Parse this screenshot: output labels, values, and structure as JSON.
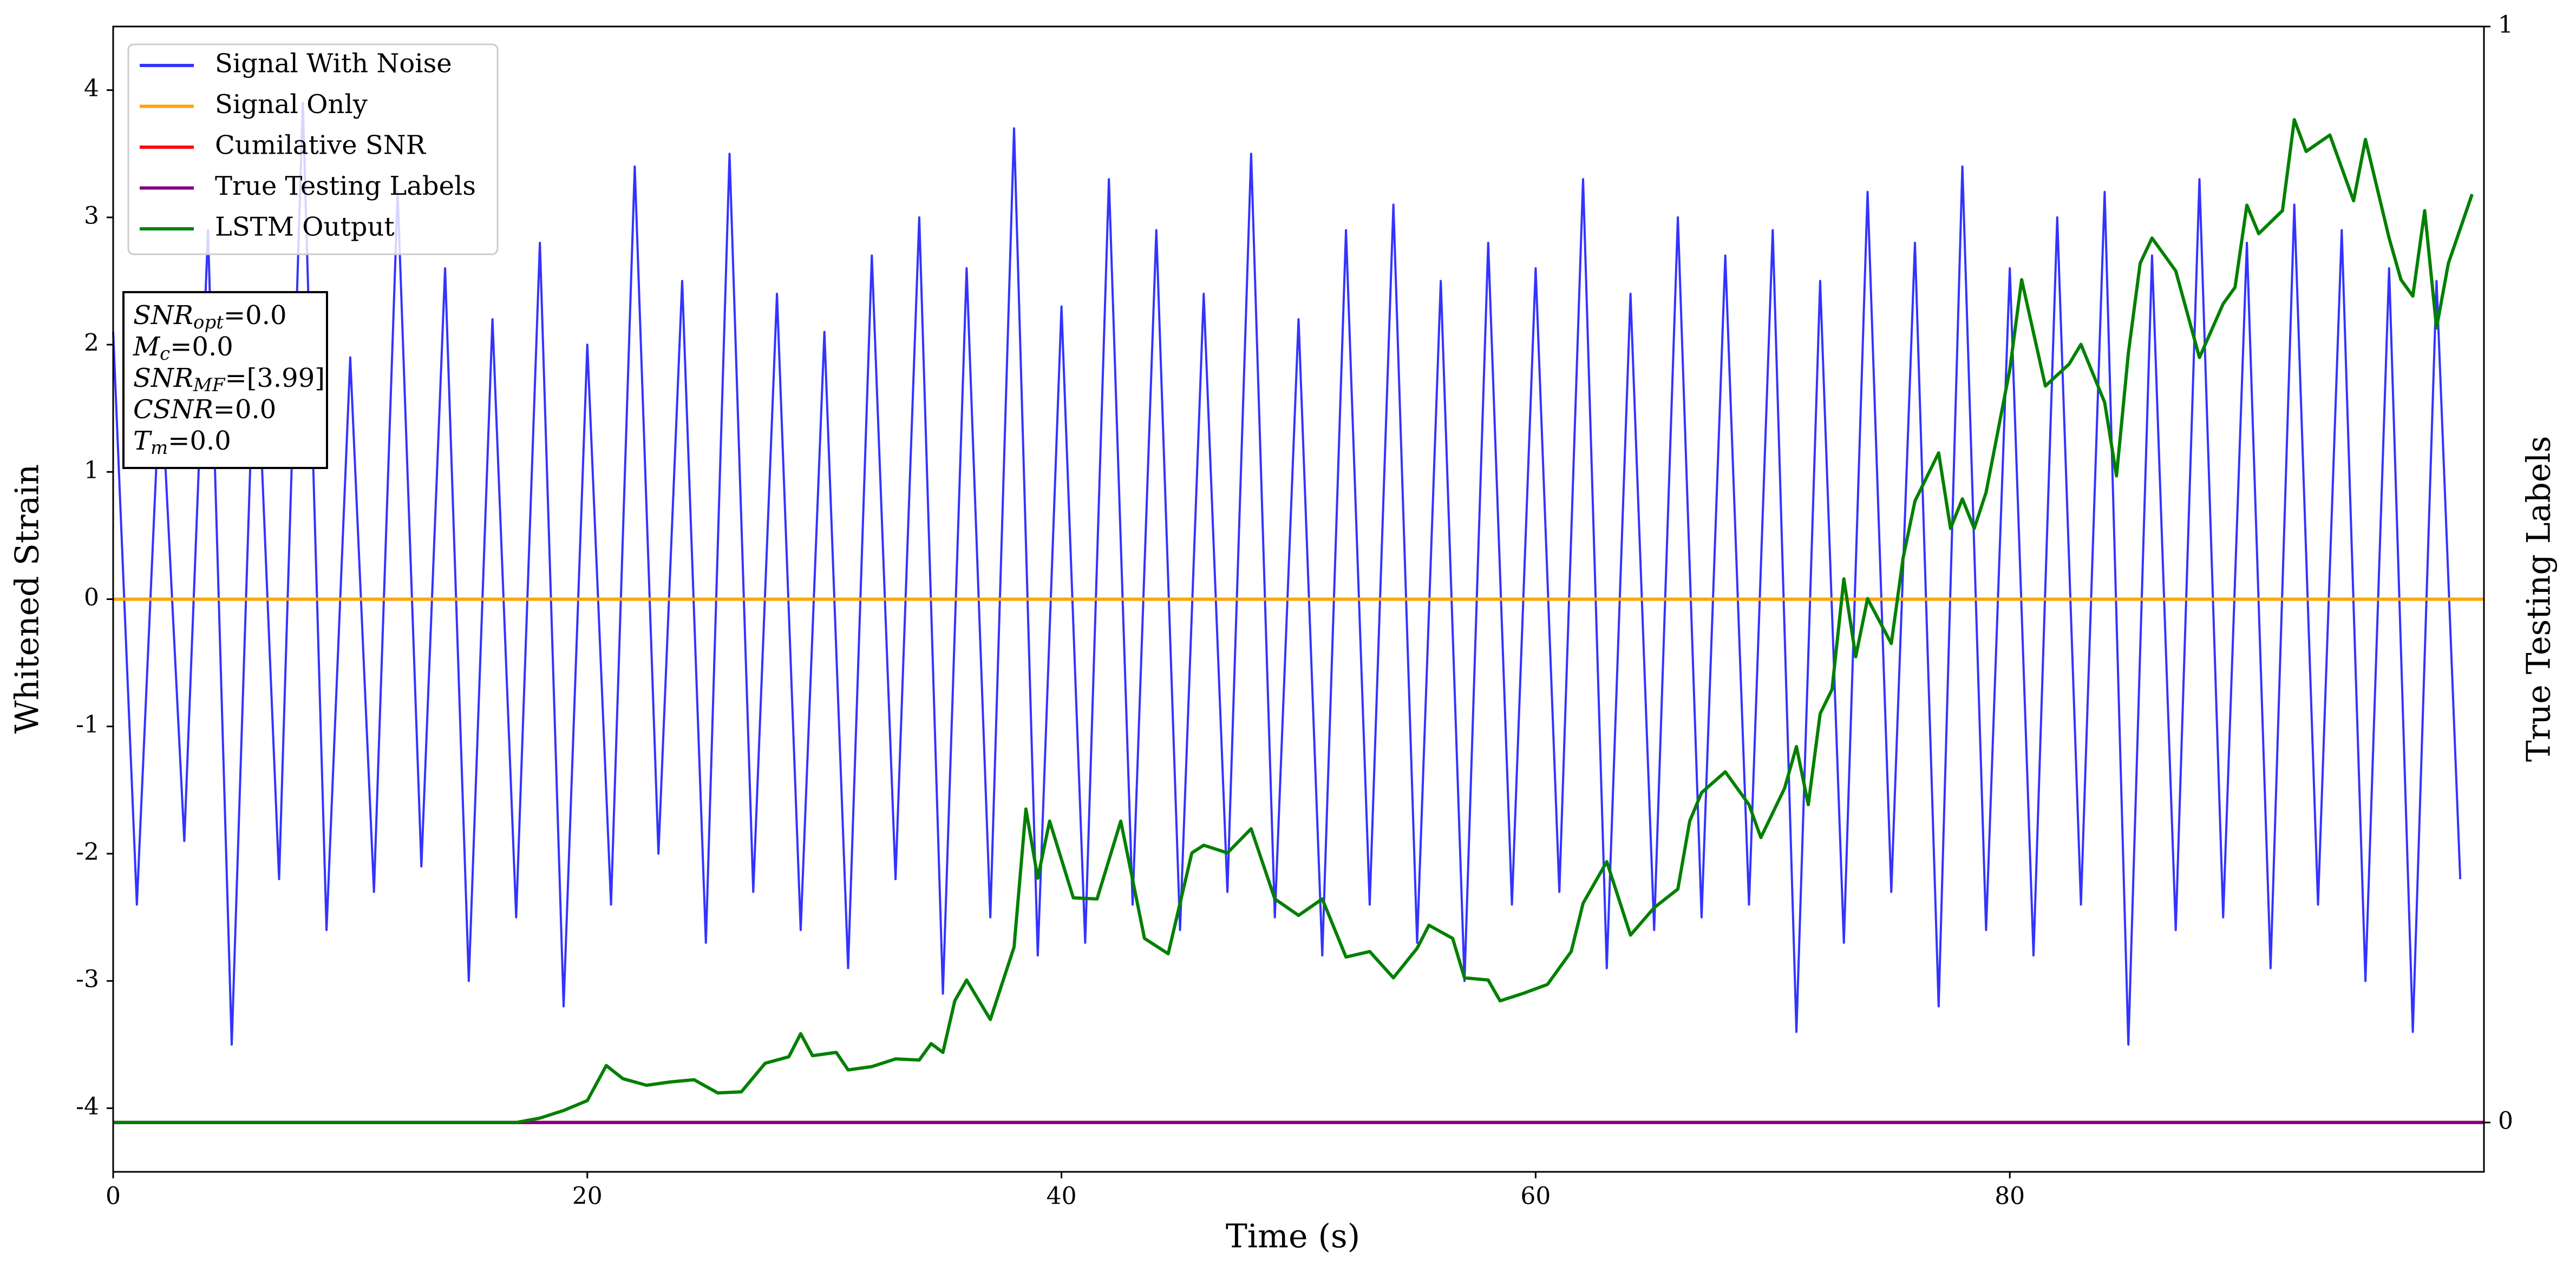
{
  "chart_data": {
    "type": "line",
    "x_label": "Time (s)",
    "y_label": "Whitened Strain",
    "y2_label": "True Testing Labels",
    "xlim": [
      0,
      100
    ],
    "xticks": [
      0,
      20,
      40,
      60,
      80
    ],
    "ylim": [
      -4.5,
      4.5
    ],
    "yticks": [
      -4,
      -3,
      -2,
      -1,
      0,
      1,
      2,
      3,
      4
    ],
    "y2lim": [
      -0.045,
      1
    ],
    "y2ticks": [
      0,
      1
    ],
    "grid": false,
    "legend": "upper left",
    "series": [
      {
        "name": "Signal With Noise",
        "color": "#3333ff",
        "x": [
          0,
          1,
          2,
          3,
          4,
          5,
          6,
          7,
          8,
          9,
          10,
          11,
          12,
          13,
          14,
          15,
          16,
          17,
          18,
          19,
          20,
          21,
          22,
          23,
          24,
          25,
          26,
          27,
          28,
          29,
          30,
          31,
          32,
          33,
          34,
          35,
          36,
          37,
          38,
          39,
          40,
          41,
          42,
          43,
          44,
          45,
          46,
          47,
          48,
          49,
          50,
          51,
          52,
          53,
          54,
          55,
          56,
          57,
          58,
          59,
          60,
          61,
          62,
          63,
          64,
          65,
          66,
          67,
          68,
          69,
          70,
          71,
          72,
          73,
          74,
          75,
          76,
          77,
          78,
          79,
          80,
          81,
          82,
          83,
          84,
          85,
          86,
          87,
          88,
          89,
          90,
          91,
          92,
          93,
          94,
          95,
          96,
          97,
          98,
          99
        ],
        "values": [
          2.1,
          -2.4,
          1.8,
          -1.9,
          2.9,
          -3.5,
          2.3,
          -2.2,
          3.9,
          -2.6,
          1.9,
          -2.3,
          3.2,
          -2.1,
          2.6,
          -3.0,
          2.2,
          -2.5,
          2.8,
          -3.2,
          2.0,
          -2.4,
          3.4,
          -2.0,
          2.5,
          -2.7,
          3.5,
          -2.3,
          2.4,
          -2.6,
          2.1,
          -2.9,
          2.7,
          -2.2,
          3.0,
          -3.1,
          2.6,
          -2.5,
          3.7,
          -2.8,
          2.3,
          -2.7,
          3.3,
          -2.4,
          2.9,
          -2.6,
          2.4,
          -2.3,
          3.5,
          -2.5,
          2.2,
          -2.8,
          2.9,
          -2.4,
          3.1,
          -2.7,
          2.5,
          -3.0,
          2.8,
          -2.4,
          2.6,
          -2.3,
          3.3,
          -2.9,
          2.4,
          -2.6,
          3.0,
          -2.5,
          2.7,
          -2.4,
          2.9,
          -3.4,
          2.5,
          -2.7,
          3.2,
          -2.3,
          2.8,
          -3.2,
          3.4,
          -2.6,
          2.6,
          -2.8,
          3.0,
          -2.4,
          3.2,
          -3.5,
          2.7,
          -2.6,
          3.3,
          -2.5,
          2.8,
          -2.9,
          3.1,
          -2.4,
          2.9,
          -3.0,
          2.6,
          -3.4,
          2.5,
          -2.2
        ]
      },
      {
        "name": "Signal Only",
        "color": "#ffa500",
        "x": [
          0,
          100
        ],
        "values": [
          0,
          0
        ]
      },
      {
        "name": "Cumilative SNR",
        "color": "#ff0000",
        "axis": "y2",
        "x": [
          0,
          100
        ],
        "values": [
          0,
          0
        ]
      },
      {
        "name": "True Testing Labels",
        "color": "#800080",
        "axis": "y2",
        "x": [
          0,
          100
        ],
        "values": [
          0,
          0
        ]
      },
      {
        "name": "LSTM Output",
        "color": "#008000",
        "axis": "y2",
        "x": [
          0,
          17,
          18,
          19,
          20,
          20.8,
          21.5,
          22.5,
          23.5,
          24.5,
          25.5,
          26.5,
          27.5,
          28.5,
          29,
          29.5,
          30.5,
          31,
          32,
          33,
          34,
          34.5,
          35,
          35.5,
          36,
          37,
          38,
          38.5,
          39,
          39.5,
          40.5,
          41.5,
          42.5,
          43.5,
          44.5,
          45.5,
          46,
          47,
          48,
          49,
          50,
          51,
          52,
          53,
          54,
          55,
          55.5,
          56.5,
          57,
          58,
          58.5,
          59.5,
          60.5,
          61.5,
          62,
          63,
          64,
          65,
          66,
          66.5,
          67,
          68,
          69,
          69.5,
          70.5,
          71,
          71.5,
          72,
          72.5,
          73,
          73.5,
          74,
          75,
          75.5,
          76,
          77,
          77.5,
          78,
          78.5,
          79,
          80,
          80.5,
          81.5,
          82.5,
          83,
          84,
          84.5,
          85,
          85.5,
          86,
          87,
          88,
          89,
          89.5,
          90,
          90.5,
          91.5,
          92,
          92.5,
          93.5,
          94.5,
          95,
          96,
          96.5,
          97,
          97.5,
          98,
          98.5,
          99.5
        ],
        "values": [
          0,
          0,
          0.004,
          0.011,
          0.02,
          0.052,
          0.04,
          0.034,
          0.037,
          0.039,
          0.027,
          0.028,
          0.054,
          0.06,
          0.081,
          0.061,
          0.064,
          0.048,
          0.051,
          0.058,
          0.057,
          0.072,
          0.064,
          0.111,
          0.13,
          0.094,
          0.16,
          0.286,
          0.223,
          0.275,
          0.205,
          0.204,
          0.275,
          0.168,
          0.154,
          0.246,
          0.253,
          0.246,
          0.268,
          0.204,
          0.189,
          0.204,
          0.151,
          0.156,
          0.132,
          0.159,
          0.18,
          0.168,
          0.132,
          0.13,
          0.111,
          0.118,
          0.126,
          0.156,
          0.2,
          0.238,
          0.171,
          0.196,
          0.213,
          0.275,
          0.301,
          0.32,
          0.29,
          0.26,
          0.305,
          0.343,
          0.29,
          0.373,
          0.395,
          0.496,
          0.425,
          0.478,
          0.437,
          0.515,
          0.567,
          0.611,
          0.542,
          0.569,
          0.542,
          0.575,
          0.687,
          0.769,
          0.672,
          0.692,
          0.71,
          0.657,
          0.59,
          0.702,
          0.784,
          0.807,
          0.777,
          0.698,
          0.747,
          0.762,
          0.837,
          0.811,
          0.832,
          0.915,
          0.886,
          0.901,
          0.841,
          0.897,
          0.807,
          0.769,
          0.754,
          0.832,
          0.725,
          0.784,
          0.847
        ]
      }
    ],
    "annotation_lines": [
      {
        "text": "SNR",
        "sub": "opt",
        "rest": "=0.0"
      },
      {
        "text": "M",
        "sub": "c",
        "rest": "=0.0"
      },
      {
        "text": "SNR",
        "sub": "MF",
        "rest": "=[3.99]"
      },
      {
        "text": "CSNR",
        "rest": "=0.0"
      },
      {
        "text": "T",
        "sub": "m",
        "rest": "=0.0"
      }
    ]
  }
}
